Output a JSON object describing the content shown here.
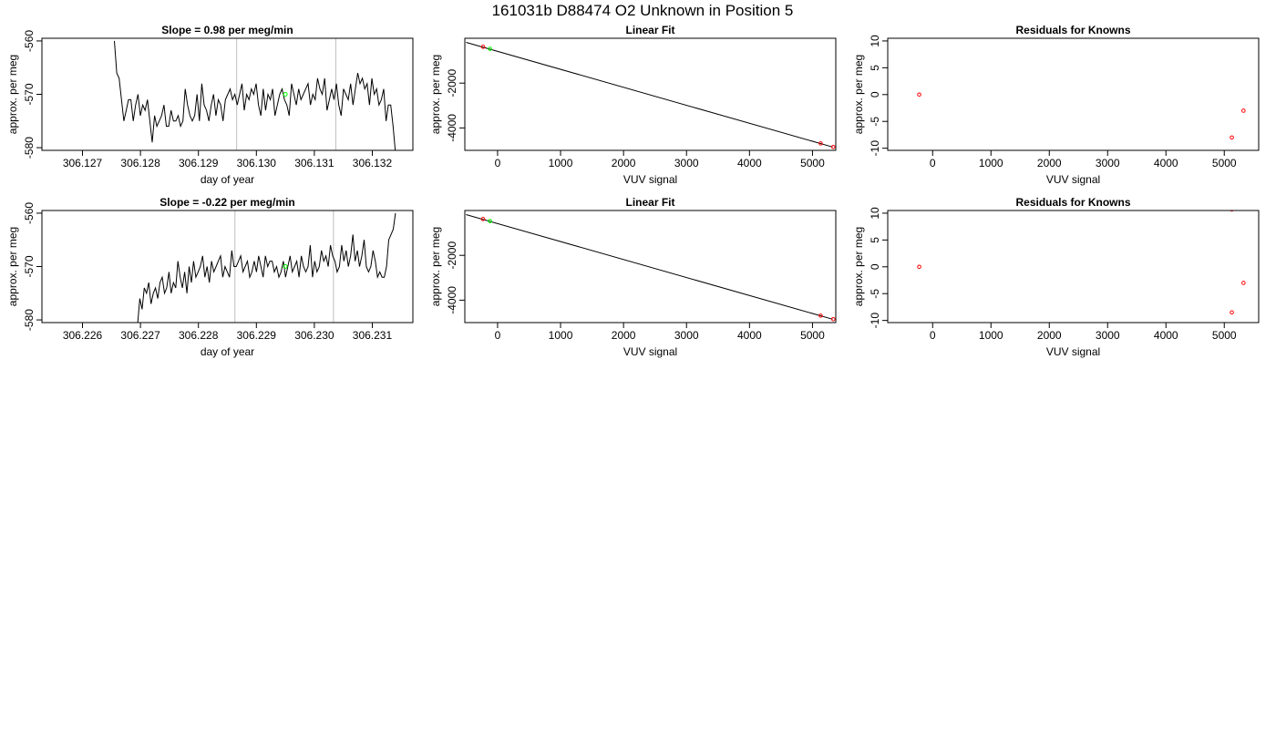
{
  "figure_title": "161031b     D88474   O2 Unknown in Position  5",
  "colors": {
    "line": "#000000",
    "vline": "#bebebe",
    "known": "#ff0000",
    "unknown": "#00ff00"
  },
  "chart_data": [
    {
      "id": "ts1",
      "type": "line",
      "title": "Slope =  0.98  per meg/min",
      "xlabel": "day of year",
      "ylabel": "approx. per meg",
      "xlim": [
        306.1263,
        306.1327
      ],
      "ylim": [
        -580.5,
        -559.5
      ],
      "xticks": [
        "306.127",
        "306.128",
        "306.129",
        "306.130",
        "306.131",
        "306.132"
      ],
      "yticks": [
        "-560",
        "-570",
        "-580"
      ],
      "vlines": [
        306.12966,
        306.13137
      ],
      "unknown_point": {
        "x": 306.1305,
        "y": -570.0
      },
      "x_start": 306.12755,
      "x_end": 306.1324,
      "values": [
        -560,
        -566,
        -567,
        -571,
        -575,
        -573,
        -571,
        -571,
        -575,
        -572,
        -570,
        -574,
        -572,
        -573,
        -571,
        -575,
        -579,
        -574,
        -576,
        -575,
        -574,
        -572,
        -576,
        -576,
        -573,
        -575,
        -575,
        -574,
        -576,
        -575,
        -569,
        -572,
        -574,
        -575,
        -574,
        -570,
        -575,
        -568,
        -572,
        -573,
        -575,
        -572,
        -570,
        -574,
        -571,
        -572,
        -575,
        -571,
        -570,
        -569,
        -571,
        -570,
        -572,
        -570,
        -568,
        -573,
        -570,
        -571,
        -569,
        -570,
        -568,
        -572,
        -574,
        -569,
        -573,
        -570,
        -571,
        -569,
        -574,
        -572,
        -570,
        -569,
        -571,
        -572,
        -574,
        -568,
        -570,
        -572,
        -569,
        -571,
        -570,
        -569,
        -568,
        -572,
        -570,
        -571,
        -567,
        -569,
        -570,
        -567,
        -573,
        -571,
        -569,
        -571,
        -568,
        -572,
        -574,
        -569,
        -570,
        -571,
        -568,
        -572,
        -569,
        -566,
        -568,
        -567,
        -569,
        -568,
        -572,
        -567,
        -570,
        -569,
        -572,
        -571,
        -569,
        -575,
        -572,
        -572,
        -576,
        -581
      ]
    },
    {
      "id": "fit1",
      "type": "scatter",
      "title": "Linear Fit",
      "xlabel": "VUV signal",
      "ylabel": "approx. per meg",
      "xlim": [
        -520,
        5370
      ],
      "ylim": [
        -5000,
        0
      ],
      "xticks": [
        0,
        1000,
        2000,
        3000,
        4000,
        5000
      ],
      "yticks": [
        -2000,
        -4000
      ],
      "fit_line": {
        "x": [
          -500,
          5320
        ],
        "y": [
          -183,
          -4850
        ]
      },
      "knowns": [
        {
          "x": -230,
          "y": -380
        },
        {
          "x": 5130,
          "y": -4690
        },
        {
          "x": 5330,
          "y": -4850
        }
      ],
      "unknown": {
        "x": -120,
        "y": -470
      }
    },
    {
      "id": "res1",
      "type": "scatter",
      "title": "Residuals for Knowns",
      "xlabel": "VUV signal",
      "ylabel": "approx. per meg",
      "xlim": [
        -770,
        5590
      ],
      "ylim": [
        -10.4,
        10.5
      ],
      "xticks": [
        0,
        1000,
        2000,
        3000,
        4000,
        5000
      ],
      "yticks": [
        10,
        5,
        0,
        -5,
        -10
      ],
      "points": [
        {
          "x": -230,
          "y": 0
        },
        {
          "x": 5130,
          "y": -8
        },
        {
          "x": 5330,
          "y": -3
        }
      ]
    },
    {
      "id": "ts2",
      "type": "line",
      "title": "Slope =  -0.22  per meg/min",
      "xlabel": "day of year",
      "ylabel": "approx. per meg",
      "xlim": [
        306.2253,
        306.2317
      ],
      "ylim": [
        -580.5,
        -559.5
      ],
      "xticks": [
        "306.226",
        "306.227",
        "306.228",
        "306.229",
        "306.230",
        "306.231"
      ],
      "yticks": [
        "-560",
        "-570",
        "-580"
      ],
      "vlines": [
        306.22863,
        306.23033
      ],
      "unknown_point": {
        "x": 306.2295,
        "y": -570.0
      },
      "x_start": 306.22695,
      "x_end": 306.2314,
      "values": [
        -581,
        -576,
        -578,
        -574,
        -575,
        -573,
        -577,
        -575,
        -574,
        -576,
        -573,
        -572,
        -575,
        -574,
        -571,
        -575,
        -573,
        -574,
        -569,
        -572,
        -574,
        -571,
        -575,
        -570,
        -573,
        -569,
        -572,
        -571,
        -570,
        -568,
        -572,
        -570,
        -573,
        -569,
        -571,
        -570,
        -569,
        -568,
        -572,
        -570,
        -571,
        -572,
        -567,
        -570,
        -570,
        -569,
        -568,
        -571,
        -570,
        -569,
        -572,
        -571,
        -569,
        -571,
        -568,
        -570,
        -572,
        -568,
        -570,
        -569,
        -569,
        -571,
        -570,
        -572,
        -571,
        -569,
        -572,
        -570,
        -568,
        -571,
        -570,
        -569,
        -572,
        -568,
        -570,
        -571,
        -570,
        -566,
        -572,
        -569,
        -571,
        -570,
        -567,
        -569,
        -568,
        -570,
        -566,
        -568,
        -569,
        -571,
        -570,
        -566,
        -569,
        -567,
        -570,
        -568,
        -564,
        -569,
        -567,
        -570,
        -568,
        -565,
        -570,
        -571,
        -570,
        -567,
        -569,
        -572,
        -571,
        -572,
        -572,
        -570,
        -565,
        -564,
        -563,
        -560
      ]
    },
    {
      "id": "fit2",
      "type": "scatter",
      "title": "Linear Fit",
      "xlabel": "VUV signal",
      "ylabel": "approx. per meg",
      "xlim": [
        -520,
        5370
      ],
      "ylim": [
        -5000,
        0
      ],
      "xticks": [
        0,
        1000,
        2000,
        3000,
        4000,
        5000
      ],
      "yticks": [
        -2000,
        -4000
      ],
      "fit_line": {
        "x": [
          -500,
          5320
        ],
        "y": [
          -183,
          -4850
        ]
      },
      "knowns": [
        {
          "x": -230,
          "y": -380
        },
        {
          "x": 5130,
          "y": -4690
        },
        {
          "x": 5330,
          "y": -4850
        }
      ],
      "unknown": {
        "x": -120,
        "y": -470
      }
    },
    {
      "id": "res2",
      "type": "scatter",
      "title": "Residuals for Knowns",
      "xlabel": "VUV signal",
      "ylabel": "approx. per meg",
      "xlim": [
        -770,
        5590
      ],
      "ylim": [
        -10.4,
        10.5
      ],
      "xticks": [
        0,
        1000,
        2000,
        3000,
        4000,
        5000
      ],
      "yticks": [
        10,
        5,
        0,
        -5,
        -10
      ],
      "points": [
        {
          "x": -230,
          "y": 0
        },
        {
          "x": 5130,
          "y": 10.7
        },
        {
          "x": 5330,
          "y": -3
        },
        {
          "x": 5130,
          "y": -8.5
        }
      ]
    }
  ]
}
